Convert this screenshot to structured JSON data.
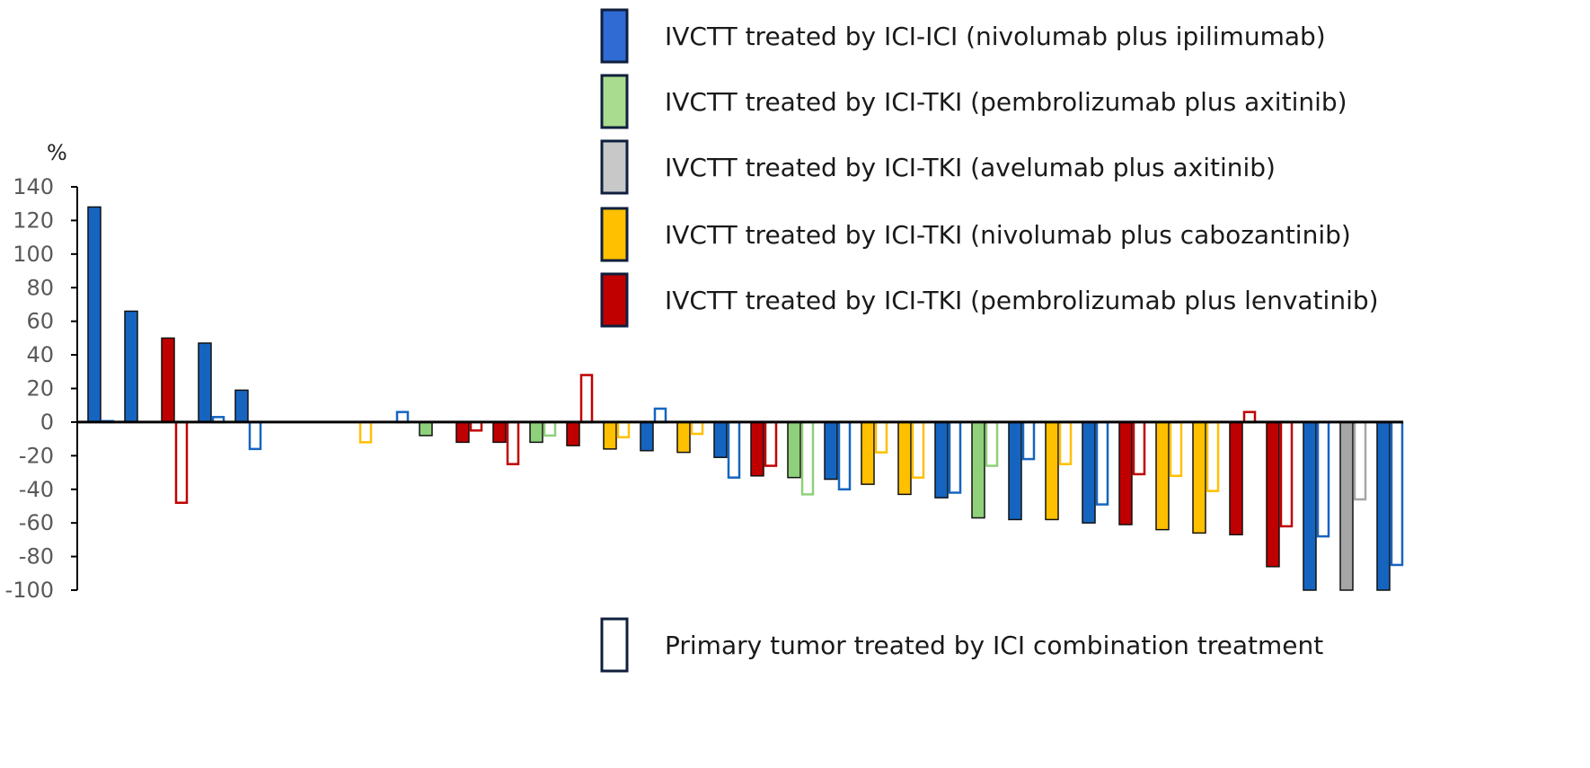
{
  "chart_data": {
    "type": "bar",
    "title": "",
    "xlabel": "",
    "ylabel": "%",
    "ylim": [
      -100,
      140
    ],
    "yticks": [
      140,
      120,
      100,
      80,
      60,
      40,
      20,
      0,
      -20,
      -40,
      -60,
      -80,
      -100
    ],
    "grid": false,
    "legend_position": "top-right",
    "series": [
      {
        "key": "nivo_ipi",
        "name": "IVCTT treated by ICI-ICI (nivolumab plus ipilimumab)",
        "fill": "#2f6bd3",
        "outline": "#0f1f3d"
      },
      {
        "key": "pembro_axi",
        "name": "IVCTT treated by ICI-TKI (pembrolizumab plus axitinib)",
        "fill": "#a9dc8f",
        "outline": "#0f1f3d"
      },
      {
        "key": "avelumab_axi",
        "name": "IVCTT treated by ICI-TKI (avelumab plus axitinib)",
        "fill": "#c8c8c8",
        "outline": "#0f1f3d"
      },
      {
        "key": "nivo_cabo",
        "name": "IVCTT treated by ICI-TKI (nivolumab plus cabozantinib)",
        "fill": "#ffc000",
        "outline": "#0f1f3d"
      },
      {
        "key": "pembro_lenva",
        "name": "IVCTT treated by ICI-TKI (pembrolizumab plus lenvatinib)",
        "fill": "#c00000",
        "outline": "#0f1f3d"
      }
    ],
    "primary_legend": {
      "name": "Primary tumor treated by ICI combination treatment",
      "outline": "#0f1f3d"
    },
    "bar_colors": {
      "nivo_ipi": "#1565c0",
      "pembro_axi": "#8fd07a",
      "avelumab_axi": "#a6a6a6",
      "nivo_cabo": "#ffc000",
      "pembro_lenva": "#c00000"
    },
    "patients": [
      {
        "group": "nivo_ipi",
        "ivctt": 128,
        "primary": 0
      },
      {
        "group": "nivo_ipi",
        "ivctt": 66,
        "primary": null
      },
      {
        "group": "pembro_lenva",
        "ivctt": 50,
        "primary": -48
      },
      {
        "group": "nivo_ipi",
        "ivctt": 47,
        "primary": 3
      },
      {
        "group": "nivo_ipi",
        "ivctt": 19,
        "primary": -16
      },
      {
        "group": null,
        "ivctt": null,
        "primary": null
      },
      {
        "group": null,
        "ivctt": null,
        "primary": null
      },
      {
        "group": "nivo_cabo",
        "ivctt": 0,
        "primary": -12
      },
      {
        "group": "nivo_ipi",
        "ivctt": 0,
        "primary": 6
      },
      {
        "group": "pembro_axi",
        "ivctt": -8,
        "primary": null
      },
      {
        "group": "pembro_lenva",
        "ivctt": -12,
        "primary": -5
      },
      {
        "group": "pembro_lenva",
        "ivctt": -12,
        "primary": -25
      },
      {
        "group": "pembro_axi",
        "ivctt": -12,
        "primary": -8
      },
      {
        "group": "pembro_lenva",
        "ivctt": -14,
        "primary": 28
      },
      {
        "group": "nivo_cabo",
        "ivctt": -16,
        "primary": -9
      },
      {
        "group": "nivo_ipi",
        "ivctt": -17,
        "primary": 8
      },
      {
        "group": "nivo_cabo",
        "ivctt": -18,
        "primary": -7
      },
      {
        "group": "nivo_ipi",
        "ivctt": -21,
        "primary": -33
      },
      {
        "group": "pembro_lenva",
        "ivctt": -32,
        "primary": -26
      },
      {
        "group": "pembro_axi",
        "ivctt": -33,
        "primary": -43
      },
      {
        "group": "nivo_ipi",
        "ivctt": -34,
        "primary": -40
      },
      {
        "group": "nivo_cabo",
        "ivctt": -37,
        "primary": -18
      },
      {
        "group": "nivo_cabo",
        "ivctt": -43,
        "primary": -33
      },
      {
        "group": "nivo_ipi",
        "ivctt": -45,
        "primary": -42
      },
      {
        "group": "pembro_axi",
        "ivctt": -57,
        "primary": -26
      },
      {
        "group": "nivo_ipi",
        "ivctt": -58,
        "primary": -22
      },
      {
        "group": "nivo_cabo",
        "ivctt": -58,
        "primary": -25
      },
      {
        "group": "nivo_ipi",
        "ivctt": -60,
        "primary": -49
      },
      {
        "group": "pembro_lenva",
        "ivctt": -61,
        "primary": -31
      },
      {
        "group": "nivo_cabo",
        "ivctt": -64,
        "primary": -32
      },
      {
        "group": "nivo_cabo",
        "ivctt": -66,
        "primary": -41
      },
      {
        "group": "pembro_lenva",
        "ivctt": -67,
        "primary": 6
      },
      {
        "group": "pembro_lenva",
        "ivctt": -86,
        "primary": -62
      },
      {
        "group": "nivo_ipi",
        "ivctt": -100,
        "primary": -68
      },
      {
        "group": "avelumab_axi",
        "ivctt": -100,
        "primary": -46
      },
      {
        "group": "nivo_ipi",
        "ivctt": -100,
        "primary": -85
      }
    ]
  }
}
